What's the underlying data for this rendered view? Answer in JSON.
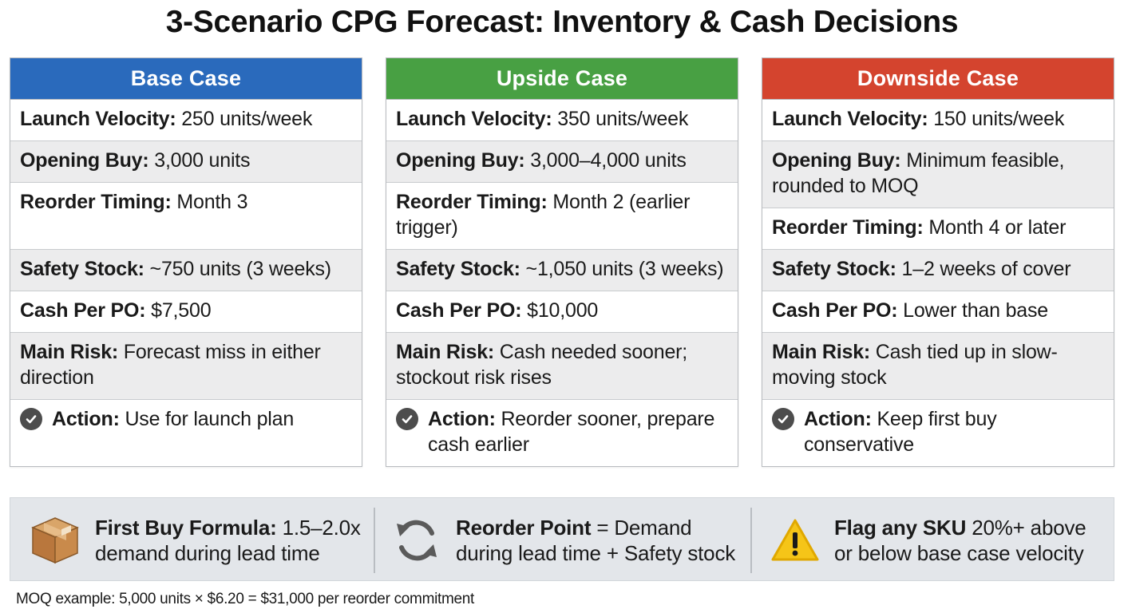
{
  "title": "3-Scenario CPG Forecast: Inventory & Cash Decisions",
  "colors": {
    "base": "#2a6abc",
    "upside": "#48a043",
    "downside": "#d4442e"
  },
  "scenarios": [
    {
      "name": "Base Case",
      "rows": [
        {
          "label": "Launch Velocity:",
          "value": "250 units/week"
        },
        {
          "label": "Opening Buy:",
          "value": "3,000 units"
        },
        {
          "label": "Reorder Timing:",
          "value": "Month 3"
        },
        {
          "label": "Safety Stock:",
          "value": "~750 units (3 weeks)"
        },
        {
          "label": "Cash Per PO:",
          "value": "$7,500"
        },
        {
          "label": "Main Risk:",
          "value": "Forecast miss in either direction"
        }
      ],
      "action": {
        "label": "Action:",
        "value": "Use for launch plan"
      }
    },
    {
      "name": "Upside Case",
      "rows": [
        {
          "label": "Launch Velocity:",
          "value": "350 units/week"
        },
        {
          "label": "Opening Buy:",
          "value": "3,000–4,000 units"
        },
        {
          "label": "Reorder Timing:",
          "value": "Month 2 (earlier trigger)"
        },
        {
          "label": "Safety Stock:",
          "value": "~1,050 units (3 weeks)"
        },
        {
          "label": "Cash Per PO:",
          "value": "$10,000"
        },
        {
          "label": "Main Risk:",
          "value": "Cash needed sooner; stockout risk rises"
        }
      ],
      "action": {
        "label": "Action:",
        "value": "Reorder sooner, prepare cash earlier"
      }
    },
    {
      "name": "Downside Case",
      "rows": [
        {
          "label": "Launch Velocity:",
          "value": "150 units/week"
        },
        {
          "label": "Opening Buy:",
          "value": "Minimum feasible, rounded to MOQ"
        },
        {
          "label": "Reorder Timing:",
          "value": "Month 4 or later"
        },
        {
          "label": "Safety Stock:",
          "value": "1–2 weeks of cover"
        },
        {
          "label": "Cash Per PO:",
          "value": "Lower than base"
        },
        {
          "label": "Main Risk:",
          "value": "Cash tied up in slow-moving stock"
        }
      ],
      "action": {
        "label": "Action:",
        "value": "Keep first buy conservative"
      }
    }
  ],
  "footer": {
    "first_buy": {
      "icon": "package-box-icon",
      "label": "First Buy Formula:",
      "value": "1.5–2.0x demand during lead time"
    },
    "reorder": {
      "icon": "refresh-cycle-icon",
      "label": "Reorder Point",
      "value": "= Demand during lead time + Safety stock"
    },
    "flag": {
      "icon": "warning-icon",
      "label": "Flag any SKU",
      "value": "20%+ above or below base case velocity"
    }
  },
  "note": "MOQ example: 5,000 units × $6.20 = $31,000 per reorder commitment"
}
